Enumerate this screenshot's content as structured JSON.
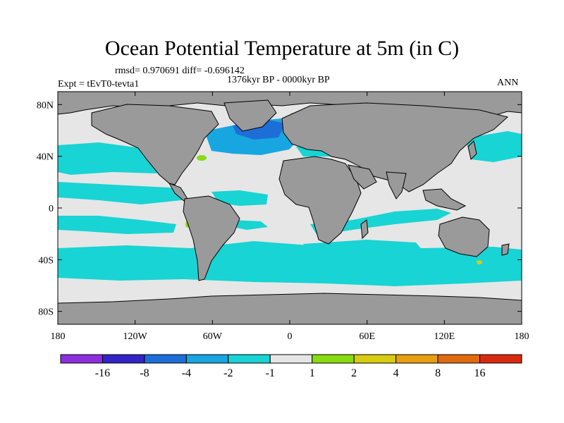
{
  "title": "Ocean Potential Temperature at 5m (in C)",
  "stats": "rmsd= 0.970691  diff= -0.696142",
  "period": "1376kyr BP - 0000kyr BP",
  "experiment": "Expt = tEvT0-tevta1",
  "season": "ANN",
  "axes": {
    "lon_range": [
      -180,
      180
    ],
    "lat_range": [
      -90,
      90
    ],
    "x_ticks": [
      {
        "value": -180,
        "label": "180"
      },
      {
        "value": -120,
        "label": "120W"
      },
      {
        "value": -60,
        "label": "60W"
      },
      {
        "value": 0,
        "label": "0"
      },
      {
        "value": 60,
        "label": "60E"
      },
      {
        "value": 120,
        "label": "120E"
      },
      {
        "value": 180,
        "label": "180"
      }
    ],
    "y_ticks": [
      {
        "value": 80,
        "label": "80N"
      },
      {
        "value": 40,
        "label": "40N"
      },
      {
        "value": 0,
        "label": "0"
      },
      {
        "value": -40,
        "label": "40S"
      },
      {
        "value": -80,
        "label": "80S"
      }
    ]
  },
  "colorbar": {
    "colors": [
      "#8c2fe0",
      "#3224c8",
      "#1e6ed8",
      "#18a6e0",
      "#18d4d4",
      "#e6e6e6",
      "#88dc10",
      "#d8cc10",
      "#e6a010",
      "#e06a10",
      "#d82a10"
    ],
    "labels": [
      "-16",
      "-8",
      "-4",
      "-2",
      "-1",
      "1",
      "2",
      "4",
      "8",
      "16"
    ]
  },
  "palette": {
    "land": "#9a9a9a",
    "ocean_neutral": "#e6e6e6",
    "cool_light": "#18d4d4",
    "cool_mid": "#18a6e0",
    "cool_deep": "#1e6ed8",
    "warm_light": "#88dc10"
  }
}
